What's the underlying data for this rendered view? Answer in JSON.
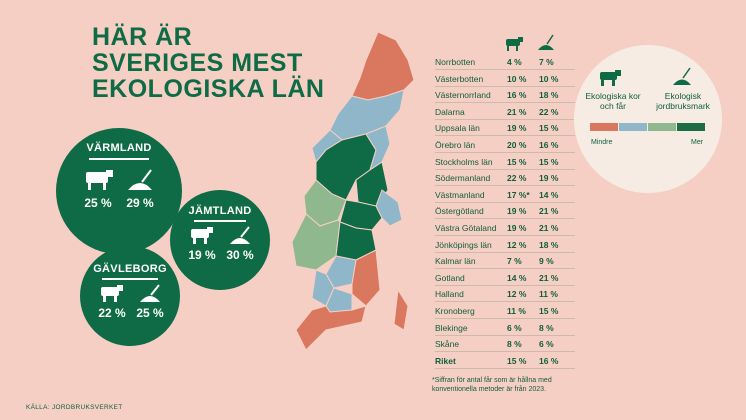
{
  "title": [
    "HÄR ÄR",
    "SVERIGES MEST",
    "EKOLOGISKA LÄN"
  ],
  "highlights": [
    {
      "name": "VÄRMLAND",
      "kor": "25 %",
      "mark": "29 %"
    },
    {
      "name": "JÄMTLAND",
      "kor": "19 %",
      "mark": "30 %"
    },
    {
      "name": "GÄVLEBORG",
      "kor": "22 %",
      "mark": "25 %"
    }
  ],
  "table": {
    "rows": [
      [
        "Norrbotten",
        "4 %",
        "7 %"
      ],
      [
        "Västerbotten",
        "10 %",
        "10 %"
      ],
      [
        "Västernorrland",
        "16 %",
        "18 %"
      ],
      [
        "Dalarna",
        "21 %",
        "22 %"
      ],
      [
        "Uppsala län",
        "19 %",
        "15 %"
      ],
      [
        "Örebro län",
        "20 %",
        "16 %"
      ],
      [
        "Stockholms län",
        "15 %",
        "15 %"
      ],
      [
        "Södermanland",
        "22 %",
        "19 %"
      ],
      [
        "Västmanland",
        "17 %*",
        "14 %"
      ],
      [
        "Östergötland",
        "19 %",
        "21 %"
      ],
      [
        "Västra Götaland",
        "19 %",
        "21 %"
      ],
      [
        "Jönköpings län",
        "12 %",
        "18 %"
      ],
      [
        "Kalmar län",
        "7 %",
        "9 %"
      ],
      [
        "Gotland",
        "14 %",
        "21 %"
      ],
      [
        "Halland",
        "12 %",
        "11 %"
      ],
      [
        "Kronoberg",
        "11 %",
        "15 %"
      ],
      [
        "Blekinge",
        "6 %",
        "8 %"
      ],
      [
        "Skåne",
        "8 %",
        "6 %"
      ],
      [
        "Riket",
        "15 %",
        "16 %"
      ]
    ]
  },
  "legend": {
    "kor": "Ekologiska kor och får",
    "mark": "Ekologisk jordbruksmark",
    "min": "Mindre",
    "max": "Mer"
  },
  "footnote": "*Siffran för antal får som är hållna med konventionella metoder är från 2023.",
  "source": "KÄLLA: JORDBRUKSVERKET"
}
